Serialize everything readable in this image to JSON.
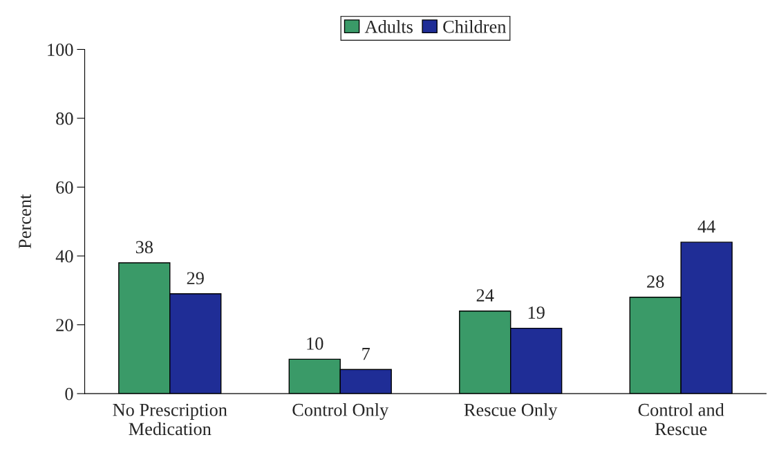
{
  "chart_data": {
    "type": "bar",
    "ylabel": "Percent",
    "categories": [
      "No Prescription\nMedication",
      "Control Only",
      "Rescue Only",
      "Control and\nRescue"
    ],
    "series": [
      {
        "name": "Adults",
        "color": "#3a9a68",
        "values": [
          38,
          10,
          24,
          28
        ]
      },
      {
        "name": "Children",
        "color": "#1f2d96",
        "values": [
          29,
          7,
          19,
          44
        ]
      }
    ],
    "ylim": [
      0,
      100
    ],
    "yticks": [
      0,
      20,
      40,
      60,
      80,
      100
    ],
    "grid": false,
    "legend": "top",
    "data_labels": true
  }
}
